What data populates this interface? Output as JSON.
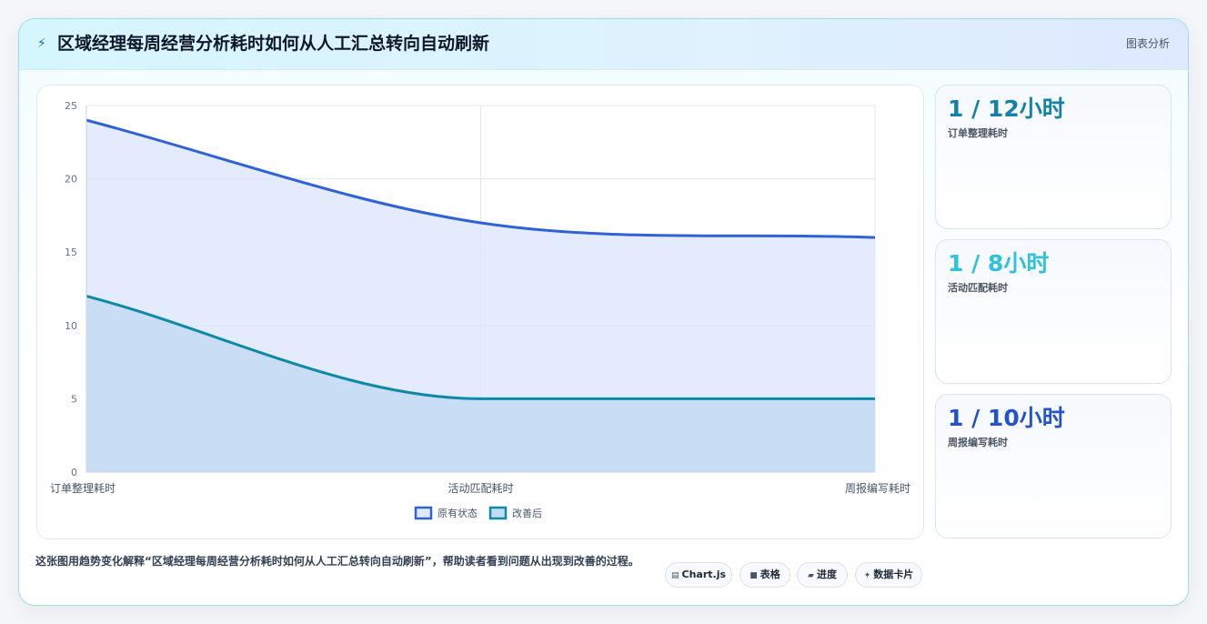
{
  "header": {
    "title": "区域经理每周经营分析耗时如何从人工汇总转向自动刷新",
    "tag": "图表分析",
    "icon": "bolt-icon"
  },
  "chart_data": {
    "type": "area",
    "categories": [
      "订单整理耗时",
      "活动匹配耗时",
      "周报编写耗时"
    ],
    "series": [
      {
        "name": "原有状态",
        "values": [
          24,
          17,
          16
        ],
        "color": "#2e62d6",
        "fill": "#dfe8fb"
      },
      {
        "name": "改善后",
        "values": [
          12,
          5,
          5
        ],
        "color": "#0e8aa8",
        "fill": "#c4dcf2"
      }
    ],
    "ylim": [
      0,
      25
    ],
    "yticks": [
      0,
      5,
      10,
      15,
      20,
      25
    ],
    "grid": true,
    "legend_position": "bottom"
  },
  "stats": [
    {
      "value": "1 / 12小时",
      "label": "订单整理耗时",
      "color": "#1482a8"
    },
    {
      "value": "1 / 8小时",
      "label": "活动匹配耗时",
      "color": "#2fc1de"
    },
    {
      "value": "1 / 10小时",
      "label": "周报编写耗时",
      "color": "#2452c8"
    }
  ],
  "footer": {
    "description": "这张图用趋势变化解释“区域经理每周经营分析耗时如何从人工汇总转向自动刷新”，帮助读者看到问题从出现到改善的过程。",
    "pills": [
      {
        "icon": "▤",
        "label": "Chart.js"
      },
      {
        "icon": "■",
        "label": "表格"
      },
      {
        "icon": "▰",
        "label": "进度"
      },
      {
        "icon": "✦",
        "label": "数据卡片"
      }
    ]
  }
}
